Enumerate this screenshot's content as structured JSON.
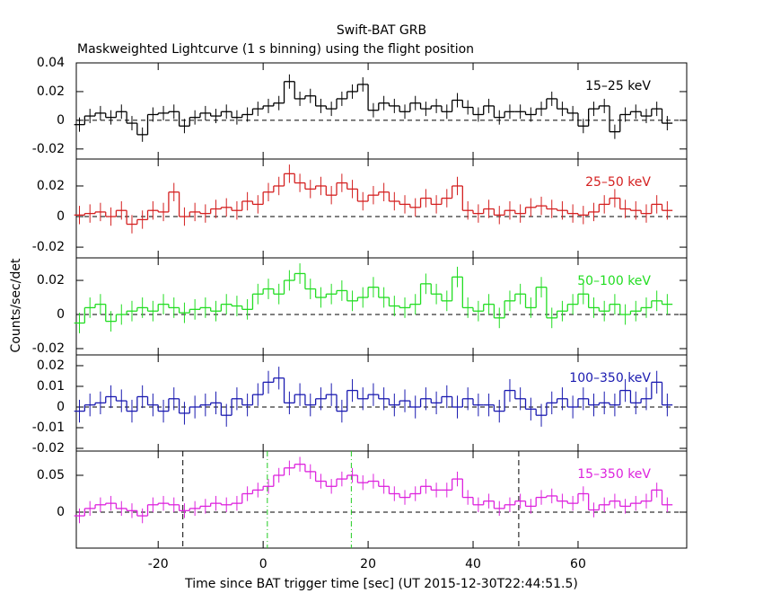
{
  "chart_data": [
    {
      "type": "step",
      "title": "Swift-BAT GRB",
      "subtitle": "Maskweighted Lightcurve (1 s binning) using the flight position",
      "y_label": "Counts/sec/det",
      "series_label": "15–25 keV",
      "color": "#000000",
      "x": [
        -35,
        -33,
        -31,
        -29,
        -27,
        -25,
        -23,
        -21,
        -19,
        -17,
        -15,
        -13,
        -11,
        -9,
        -7,
        -5,
        -3,
        -1,
        1,
        3,
        5,
        7,
        9,
        11,
        13,
        15,
        17,
        19,
        21,
        23,
        25,
        27,
        29,
        31,
        33,
        35,
        37,
        39,
        41,
        43,
        45,
        47,
        49,
        51,
        53,
        55,
        57,
        59,
        61,
        63,
        65,
        67,
        69,
        71,
        73,
        75,
        77
      ],
      "values": [
        -0.003,
        0.003,
        0.005,
        0.002,
        0.006,
        -0.002,
        -0.01,
        0.004,
        0.005,
        0.006,
        -0.004,
        0.002,
        0.005,
        0.003,
        0.006,
        0.002,
        0.004,
        0.008,
        0.01,
        0.012,
        0.027,
        0.015,
        0.017,
        0.01,
        0.008,
        0.015,
        0.02,
        0.025,
        0.007,
        0.012,
        0.01,
        0.006,
        0.012,
        0.008,
        0.01,
        0.006,
        0.014,
        0.009,
        0.004,
        0.01,
        0.002,
        0.006,
        0.006,
        0.004,
        0.008,
        0.015,
        0.008,
        0.005,
        -0.004,
        0.008,
        0.01,
        -0.008,
        0.004,
        0.006,
        0.003,
        0.008,
        -0.002
      ],
      "error": 0.005,
      "xlim": [
        -35.6,
        80.7
      ],
      "xticks": [
        -20,
        0,
        20,
        40,
        60
      ],
      "ylim": [
        -0.027,
        0.04
      ],
      "yticks": [
        0.04,
        0.02,
        0,
        -0.02
      ]
    },
    {
      "type": "step",
      "series_label": "25–50 keV",
      "color": "#d42020",
      "x": [
        -35,
        -33,
        -31,
        -29,
        -27,
        -25,
        -23,
        -21,
        -19,
        -17,
        -15,
        -13,
        -11,
        -9,
        -7,
        -5,
        -3,
        -1,
        1,
        3,
        5,
        7,
        9,
        11,
        13,
        15,
        17,
        19,
        21,
        23,
        25,
        27,
        29,
        31,
        33,
        35,
        37,
        39,
        41,
        43,
        45,
        47,
        49,
        51,
        53,
        55,
        57,
        59,
        61,
        63,
        65,
        67,
        69,
        71,
        73,
        75,
        77
      ],
      "values": [
        0.001,
        0.002,
        0.003,
        0,
        0.004,
        -0.005,
        -0.002,
        0.004,
        0.003,
        0.016,
        0,
        0.003,
        0.002,
        0.005,
        0.006,
        0.004,
        0.01,
        0.008,
        0.016,
        0.02,
        0.028,
        0.022,
        0.018,
        0.02,
        0.014,
        0.022,
        0.018,
        0.01,
        0.014,
        0.016,
        0.01,
        0.008,
        0.006,
        0.012,
        0.008,
        0.012,
        0.02,
        0.004,
        0.002,
        0.005,
        0.001,
        0.004,
        0.002,
        0.006,
        0.007,
        0.005,
        0.004,
        0.002,
        0.001,
        0.003,
        0.008,
        0.012,
        0.005,
        0.004,
        0.002,
        0.008,
        0.004
      ],
      "error": 0.006,
      "xlim": [
        -35.6,
        80.7
      ],
      "xticks": [
        -20,
        0,
        20,
        40,
        60
      ],
      "ylim": [
        -0.027,
        0.0376
      ],
      "yticks": [
        0.02,
        0,
        -0.02
      ]
    },
    {
      "type": "step",
      "series_label": "50–100 keV",
      "color": "#22dd22",
      "x": [
        -35,
        -33,
        -31,
        -29,
        -27,
        -25,
        -23,
        -21,
        -19,
        -17,
        -15,
        -13,
        -11,
        -9,
        -7,
        -5,
        -3,
        -1,
        1,
        3,
        5,
        7,
        9,
        11,
        13,
        15,
        17,
        19,
        21,
        23,
        25,
        27,
        29,
        31,
        33,
        35,
        37,
        39,
        41,
        43,
        45,
        47,
        49,
        51,
        53,
        55,
        57,
        59,
        61,
        63,
        65,
        67,
        69,
        71,
        73,
        75,
        77
      ],
      "values": [
        -0.005,
        0.004,
        0.006,
        -0.004,
        0,
        0.002,
        0.004,
        0.002,
        0.006,
        0.004,
        0.001,
        0.003,
        0.004,
        0.002,
        0.006,
        0.005,
        0.003,
        0.012,
        0.015,
        0.012,
        0.02,
        0.024,
        0.015,
        0.01,
        0.012,
        0.014,
        0.008,
        0.01,
        0.016,
        0.01,
        0.005,
        0.004,
        0.006,
        0.018,
        0.012,
        0.008,
        0.022,
        0.004,
        0.002,
        0.006,
        -0.002,
        0.008,
        0.012,
        0.004,
        0.016,
        -0.002,
        0.002,
        0.006,
        0.012,
        0.004,
        0.002,
        0.006,
        0,
        0.002,
        0.004,
        0.008,
        0.006
      ],
      "error": 0.006,
      "xlim": [
        -35.6,
        80.7
      ],
      "xticks": [
        -20,
        0,
        20,
        40,
        60
      ],
      "ylim": [
        -0.0237,
        0.0332
      ],
      "yticks": [
        0.02,
        0,
        -0.02
      ]
    },
    {
      "type": "step",
      "series_label": "100–350 keV",
      "color": "#1a1ab0",
      "x": [
        -35,
        -33,
        -31,
        -29,
        -27,
        -25,
        -23,
        -21,
        -19,
        -17,
        -15,
        -13,
        -11,
        -9,
        -7,
        -5,
        -3,
        -1,
        1,
        3,
        5,
        7,
        9,
        11,
        13,
        15,
        17,
        19,
        21,
        23,
        25,
        27,
        29,
        31,
        33,
        35,
        37,
        39,
        41,
        43,
        45,
        47,
        49,
        51,
        53,
        55,
        57,
        59,
        61,
        63,
        65,
        67,
        69,
        71,
        73,
        75,
        77
      ],
      "values": [
        -0.002,
        0.001,
        0.002,
        0.005,
        0.003,
        -0.002,
        0.005,
        0.001,
        -0.002,
        0.004,
        -0.003,
        0,
        0.001,
        0.002,
        -0.004,
        0.004,
        0.001,
        0.006,
        0.012,
        0.014,
        0.002,
        0.006,
        0.001,
        0.004,
        0.006,
        -0.002,
        0.008,
        0.004,
        0.006,
        0.004,
        0.001,
        0.003,
        0,
        0.004,
        0.002,
        0.005,
        0,
        0.004,
        0.001,
        0.001,
        -0.002,
        0.008,
        0.004,
        -0.001,
        -0.004,
        0.002,
        0.004,
        0,
        0.004,
        0.001,
        0.002,
        0.001,
        0.008,
        0.002,
        0.004,
        0.012,
        0.001
      ],
      "error": 0.0055,
      "xlim": [
        -35.6,
        80.7
      ],
      "xticks": [
        -20,
        0,
        20,
        40,
        60
      ],
      "ylim": [
        -0.0213,
        0.0252
      ],
      "yticks": [
        0.02,
        0.01,
        0,
        -0.01,
        -0.02
      ]
    },
    {
      "type": "step",
      "series_label": "15–350 keV",
      "color": "#dd22dd",
      "x_label": "Time since BAT trigger time [sec] (UT 2015-12-30T22:44:51.5)",
      "x": [
        -35,
        -33,
        -31,
        -29,
        -27,
        -25,
        -23,
        -21,
        -19,
        -17,
        -15,
        -13,
        -11,
        -9,
        -7,
        -5,
        -3,
        -1,
        1,
        3,
        5,
        7,
        9,
        11,
        13,
        15,
        17,
        19,
        21,
        23,
        25,
        27,
        29,
        31,
        33,
        35,
        37,
        39,
        41,
        43,
        45,
        47,
        49,
        51,
        53,
        55,
        57,
        59,
        61,
        63,
        65,
        67,
        69,
        71,
        73,
        75,
        77
      ],
      "values": [
        -0.005,
        0.005,
        0.01,
        0.012,
        0.005,
        0.002,
        -0.005,
        0.01,
        0.012,
        0.01,
        0.002,
        0.005,
        0.008,
        0.012,
        0.01,
        0.012,
        0.025,
        0.03,
        0.035,
        0.05,
        0.06,
        0.065,
        0.055,
        0.042,
        0.035,
        0.045,
        0.05,
        0.04,
        0.042,
        0.035,
        0.025,
        0.02,
        0.025,
        0.035,
        0.03,
        0.03,
        0.045,
        0.02,
        0.01,
        0.015,
        0.005,
        0.01,
        0.015,
        0.008,
        0.02,
        0.022,
        0.015,
        0.012,
        0.025,
        0.003,
        0.01,
        0.015,
        0.008,
        0.012,
        0.015,
        0.03,
        0.01
      ],
      "error": 0.01,
      "xlim": [
        -35.6,
        80.7
      ],
      "xticks": [
        -20,
        0,
        20,
        40,
        60
      ],
      "ylim": [
        -0.0488,
        0.0829
      ],
      "yticks": [
        0.05,
        0
      ],
      "vlines": [
        {
          "x": -15.3,
          "color": "#000000"
        },
        {
          "x": 0.8,
          "color": "#22cc22"
        },
        {
          "x": 16.8,
          "color": "#22cc22"
        },
        {
          "x": 48.7,
          "color": "#000000"
        }
      ]
    }
  ]
}
